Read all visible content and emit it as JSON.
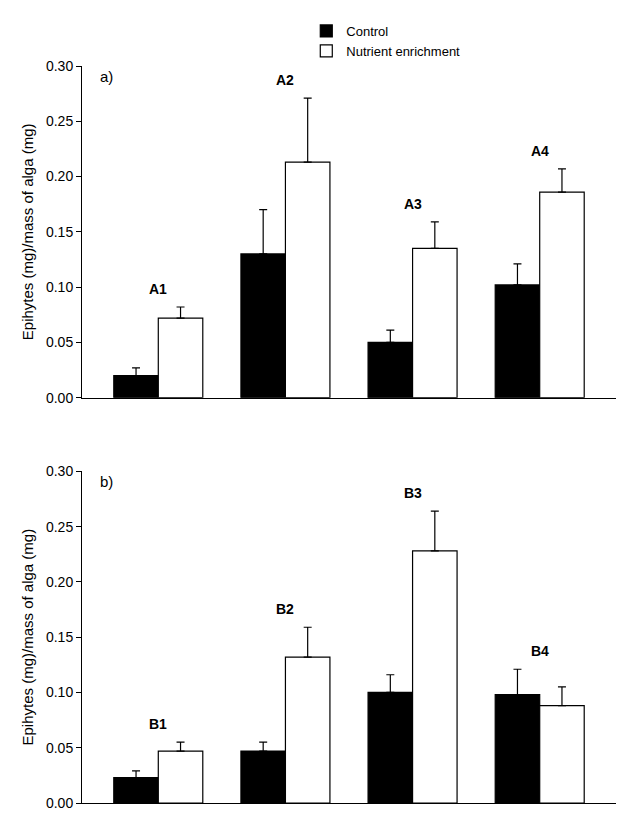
{
  "chart_data": [
    {
      "type": "bar",
      "title": "a)",
      "y_label": "Epihytes (mg)/mass of alga (mg)",
      "categories": [
        "A1",
        "A2",
        "A3",
        "A4"
      ],
      "series": [
        {
          "name": "Control",
          "color": "#000000",
          "values": [
            0.02,
            0.13,
            0.05,
            0.102
          ],
          "errors": [
            0.007,
            0.04,
            0.011,
            0.019
          ]
        },
        {
          "name": "Nutrient enrichment",
          "color": "#ffffff",
          "values": [
            0.072,
            0.213,
            0.135,
            0.186
          ],
          "errors": [
            0.01,
            0.058,
            0.024,
            0.021
          ]
        }
      ],
      "ylim": [
        0,
        0.3
      ],
      "yticks": [
        {
          "value": 0,
          "label": "0.00"
        },
        {
          "value": 0.05,
          "label": "0.05"
        },
        {
          "value": 0.1,
          "label": "0.10"
        },
        {
          "value": 0.15,
          "label": "0.15"
        },
        {
          "value": 0.2,
          "label": "0.20"
        },
        {
          "value": 0.25,
          "label": "0.25"
        },
        {
          "value": 0.3,
          "label": "0.30"
        }
      ],
      "legend": "top",
      "tick_labels": "y",
      "grid": false
    },
    {
      "type": "bar",
      "title": "b)",
      "y_label": "Epihytes (mg)/mass of alga (mg)",
      "categories": [
        "B1",
        "B2",
        "B3",
        "B4"
      ],
      "series": [
        {
          "name": "Control",
          "color": "#000000",
          "values": [
            0.023,
            0.047,
            0.1,
            0.098
          ],
          "errors": [
            0.006,
            0.008,
            0.016,
            0.023
          ]
        },
        {
          "name": "Nutrient enrichment",
          "color": "#ffffff",
          "values": [
            0.047,
            0.132,
            0.228,
            0.088
          ],
          "errors": [
            0.008,
            0.027,
            0.036,
            0.017
          ]
        }
      ],
      "ylim": [
        0,
        0.3
      ],
      "yticks": [
        {
          "value": 0,
          "label": "0.00"
        },
        {
          "value": 0.05,
          "label": "0.05"
        },
        {
          "value": 0.1,
          "label": "0.10"
        },
        {
          "value": 0.15,
          "label": "0.15"
        },
        {
          "value": 0.2,
          "label": "0.20"
        },
        {
          "value": 0.25,
          "label": "0.25"
        },
        {
          "value": 0.3,
          "label": "0.30"
        }
      ],
      "tick_labels": "y",
      "grid": false
    }
  ]
}
